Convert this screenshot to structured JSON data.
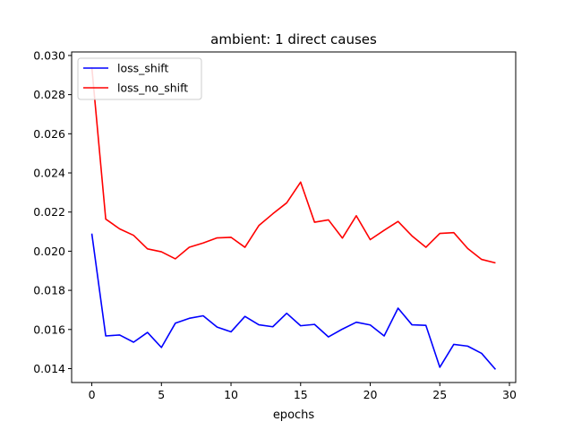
{
  "chart_data": {
    "type": "line",
    "title": "ambient: 1 direct causes",
    "xlabel": "epochs",
    "ylabel": "",
    "xlim": [
      -1.45,
      30.45
    ],
    "ylim": [
      0.01329,
      0.03018
    ],
    "xticks": [
      0,
      5,
      10,
      15,
      20,
      25,
      30
    ],
    "yticks": [
      0.014,
      0.016,
      0.018,
      0.02,
      0.022,
      0.024,
      0.026,
      0.028,
      0.03
    ],
    "ytick_labels": [
      "0.014",
      "0.016",
      "0.018",
      "0.020",
      "0.022",
      "0.024",
      "0.026",
      "0.028",
      "0.030"
    ],
    "grid": false,
    "legend_position": "top-left",
    "x": [
      0,
      1,
      2,
      3,
      4,
      5,
      6,
      7,
      8,
      9,
      10,
      11,
      12,
      13,
      14,
      15,
      16,
      17,
      18,
      19,
      20,
      21,
      22,
      23,
      24,
      25,
      26,
      27,
      28,
      29
    ],
    "series": [
      {
        "name": "loss_shift",
        "color": "#0000ff",
        "values": [
          0.0209,
          0.01567,
          0.01572,
          0.01535,
          0.01585,
          0.01508,
          0.01632,
          0.01657,
          0.0167,
          0.01612,
          0.01588,
          0.01667,
          0.01624,
          0.01614,
          0.01683,
          0.01619,
          0.01626,
          0.01562,
          0.01602,
          0.01637,
          0.01623,
          0.01567,
          0.01709,
          0.01624,
          0.01621,
          0.01407,
          0.01524,
          0.01515,
          0.01478,
          0.01396
        ]
      },
      {
        "name": "loss_no_shift",
        "color": "#ff0000",
        "values": [
          0.0294,
          0.02164,
          0.02114,
          0.02081,
          0.02012,
          0.01997,
          0.01961,
          0.0202,
          0.02042,
          0.02068,
          0.02071,
          0.0202,
          0.02131,
          0.02191,
          0.02247,
          0.02353,
          0.02148,
          0.0216,
          0.02067,
          0.02181,
          0.02059,
          0.02107,
          0.02152,
          0.02078,
          0.0202,
          0.02091,
          0.02095,
          0.02014,
          0.01958,
          0.0194
        ]
      }
    ]
  }
}
